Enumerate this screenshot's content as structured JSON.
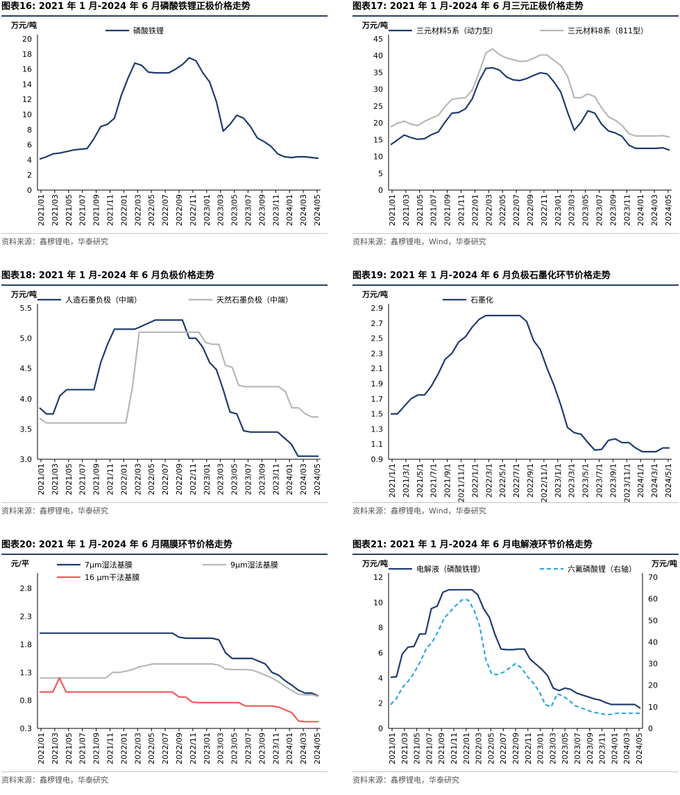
{
  "panels": [
    {
      "title": "图表16:  2021 年 1 月-2024 年 6 月磷酸铁锂正极价格走势",
      "source": "资料来源：鑫椤锂电，华泰研究",
      "chart_data": {
        "type": "line",
        "ylabel": "万元/吨",
        "ylim": [
          0,
          20
        ],
        "yticks": [
          "0",
          "2",
          "4",
          "6",
          "8",
          "10",
          "12",
          "14",
          "16",
          "18",
          "20"
        ],
        "xtick_labels": [
          "2021/01",
          "2021/03",
          "2021/05",
          "2021/07",
          "2021/09",
          "2021/11",
          "2022/01",
          "2022/03",
          "2022/05",
          "2022/07",
          "2022/09",
          "2022/11",
          "2023/01",
          "2023/03",
          "2023/05",
          "2023/07",
          "2023/09",
          "2023/11",
          "2024/01",
          "2024/03",
          "2024/05"
        ],
        "legend_position": "top-center",
        "series": [
          {
            "name": "磷酸铁锂",
            "color": "#1f3c6e",
            "dashed": false,
            "axis": "left",
            "values": [
              4.1,
              4.4,
              4.8,
              4.9,
              5.1,
              5.3,
              5.4,
              5.5,
              6.8,
              8.4,
              8.7,
              9.5,
              12.5,
              14.8,
              16.8,
              16.5,
              15.6,
              15.5,
              15.5,
              15.5,
              16.0,
              16.6,
              17.5,
              17.1,
              15.5,
              14.3,
              11.7,
              7.8,
              8.7,
              9.9,
              9.5,
              8.4,
              6.9,
              6.4,
              5.8,
              4.8,
              4.4,
              4.3,
              4.4,
              4.4,
              4.3,
              4.2
            ]
          }
        ]
      }
    },
    {
      "title": "图表17:  2021 年 1 月-2024 年 6 月三元正极价格走势",
      "source": "资料来源：鑫椤锂电，Wind，华泰研究",
      "chart_data": {
        "type": "line",
        "ylabel": "万元/吨",
        "ylim": [
          0,
          45
        ],
        "yticks": [
          "0",
          "5",
          "10",
          "15",
          "20",
          "25",
          "30",
          "35",
          "40",
          "45"
        ],
        "xtick_labels": [
          "2021/01",
          "2021/03",
          "2021/05",
          "2021/07",
          "2021/09",
          "2021/11",
          "2022/01",
          "2022/03",
          "2022/05",
          "2022/07",
          "2022/09",
          "2022/11",
          "2023/01",
          "2023/03",
          "2023/05",
          "2023/07",
          "2023/09",
          "2023/11",
          "2024/01",
          "2024/03",
          "2024/05"
        ],
        "legend_position": "top",
        "series": [
          {
            "name": "三元材料5系（动力型）",
            "color": "#1f3c6e",
            "dashed": false,
            "axis": "left",
            "values": [
              13.5,
              14.9,
              16.4,
              15.6,
              15.1,
              15.3,
              16.5,
              17.3,
              20.2,
              22.9,
              23.1,
              24.2,
              27.2,
              32.5,
              36.2,
              36.4,
              35.7,
              33.7,
              32.8,
              32.6,
              33.2,
              34.1,
              34.9,
              34.6,
              32.2,
              29.2,
              23.2,
              17.8,
              20.2,
              23.6,
              22.9,
              19.6,
              17.6,
              17.0,
              16.0,
              13.4,
              12.4,
              12.4,
              12.4,
              12.4,
              12.6,
              11.9
            ]
          },
          {
            "name": "三元材料8系（811型）",
            "color": "#b8b8b8",
            "dashed": false,
            "axis": "left",
            "values": [
              18.8,
              19.9,
              20.5,
              19.6,
              19.2,
              20.5,
              21.4,
              22.2,
              24.9,
              27.0,
              27.3,
              27.5,
              29.8,
              35.0,
              40.8,
              42.0,
              40.3,
              39.3,
              38.8,
              38.3,
              38.4,
              39.2,
              40.2,
              40.2,
              38.6,
              37.1,
              33.9,
              27.5,
              27.5,
              28.6,
              27.8,
              24.5,
              21.8,
              20.8,
              19.3,
              16.8,
              16.1,
              16.1,
              16.1,
              16.1,
              16.2,
              15.8
            ]
          }
        ]
      }
    },
    {
      "title": "图表18:  2021 年 1 月-2024 年 6 月负极价格走势",
      "source": "资料来源：鑫椤锂电，华泰研究",
      "chart_data": {
        "type": "line",
        "ylabel": "万元/吨",
        "ylim": [
          3.0,
          5.5
        ],
        "yticks": [
          "3.0",
          "3.5",
          "4.0",
          "4.5",
          "5.0",
          "5.5"
        ],
        "xtick_labels": [
          "2021/01",
          "2021/03",
          "2021/05",
          "2021/07",
          "2021/09",
          "2021/11",
          "2022/01",
          "2022/03",
          "2022/05",
          "2022/07",
          "2022/09",
          "2022/11",
          "2023/01",
          "2023/03",
          "2023/05",
          "2023/07",
          "2023/09",
          "2023/11",
          "2024/01",
          "2024/03",
          "2024/05"
        ],
        "legend_position": "top",
        "series": [
          {
            "name": "人造石墨负极（中端）",
            "color": "#1f3c6e",
            "dashed": false,
            "axis": "left",
            "values": [
              3.85,
              3.75,
              3.75,
              4.05,
              4.15,
              4.15,
              4.15,
              4.15,
              4.15,
              4.6,
              4.9,
              5.15,
              5.15,
              5.15,
              5.15,
              5.2,
              5.25,
              5.3,
              5.3,
              5.3,
              5.3,
              5.3,
              5.0,
              5.0,
              4.85,
              4.6,
              4.48,
              4.15,
              3.78,
              3.75,
              3.47,
              3.45,
              3.45,
              3.45,
              3.45,
              3.45,
              3.35,
              3.25,
              3.05,
              3.05,
              3.05,
              3.05
            ]
          },
          {
            "name": "天然石墨负极（中端）",
            "color": "#b8b8b8",
            "dashed": false,
            "axis": "left",
            "values": [
              3.68,
              3.6,
              3.6,
              3.6,
              3.6,
              3.6,
              3.6,
              3.6,
              3.6,
              3.6,
              3.6,
              3.6,
              3.6,
              3.6,
              4.2,
              5.1,
              5.1,
              5.1,
              5.1,
              5.1,
              5.1,
              5.1,
              5.1,
              5.1,
              5.1,
              4.93,
              4.9,
              4.9,
              4.55,
              4.52,
              4.22,
              4.2,
              4.2,
              4.2,
              4.2,
              4.2,
              4.2,
              4.12,
              3.85,
              3.85,
              3.75,
              3.7,
              3.7
            ]
          }
        ]
      }
    },
    {
      "title": "图表19:  2021 年 1 月-2024 年 6 月负极石墨化环节价格走势",
      "source": "资料来源：鑫椤锂电，Wind，华泰研究",
      "chart_data": {
        "type": "line",
        "ylabel": "万元/吨",
        "ylim": [
          0.9,
          2.9
        ],
        "yticks": [
          "0.9",
          "1.1",
          "1.3",
          "1.5",
          "1.7",
          "1.9",
          "2.1",
          "2.3",
          "2.5",
          "2.7",
          "2.9"
        ],
        "xtick_labels": [
          "2021/1/1",
          "2021/3/1",
          "2021/5/1",
          "2021/7/1",
          "2021/9/1",
          "2021/11/1",
          "2022/1/1",
          "2022/3/1",
          "2022/5/1",
          "2022/7/1",
          "2022/9/1",
          "2022/11/1",
          "2023/1/1",
          "2023/3/1",
          "2023/5/1",
          "2023/7/1",
          "2023/9/1",
          "2023/11/1",
          "2024/1/1",
          "2024/3/1",
          "2024/5/1"
        ],
        "legend_position": "top-left",
        "series": [
          {
            "name": "石墨化",
            "color": "#1f3c6e",
            "dashed": false,
            "axis": "left",
            "values": [
              1.5,
              1.5,
              1.6,
              1.7,
              1.75,
              1.75,
              1.87,
              2.03,
              2.22,
              2.3,
              2.45,
              2.52,
              2.65,
              2.75,
              2.8,
              2.8,
              2.8,
              2.8,
              2.8,
              2.8,
              2.72,
              2.47,
              2.35,
              2.1,
              1.88,
              1.62,
              1.32,
              1.25,
              1.23,
              1.12,
              1.02,
              1.03,
              1.15,
              1.17,
              1.12,
              1.12,
              1.05,
              1.0,
              1.0,
              1.0,
              1.05,
              1.05
            ]
          }
        ]
      }
    },
    {
      "title": "图表20:  2021 年 1 月-2024 年 6 月隔膜环节价格走势",
      "source": "资料来源：鑫椤锂电，华泰研究",
      "chart_data": {
        "type": "line",
        "ylabel": "元/平",
        "ylim": [
          0.3,
          3.0
        ],
        "yticks": [
          "0.3",
          "0.8",
          "1.3",
          "1.8",
          "2.3",
          "2.8"
        ],
        "xtick_labels": [
          "2021/01",
          "2021/03",
          "2021/05",
          "2021/07",
          "2021/09",
          "2021/11",
          "2022/01",
          "2022/03",
          "2022/05",
          "2022/07",
          "2022/09",
          "2022/11",
          "2023/01",
          "2023/03",
          "2023/05",
          "2023/07",
          "2023/09",
          "2023/11",
          "2024/01",
          "2024/03",
          "2024/05"
        ],
        "legend_position": "top",
        "series": [
          {
            "name": "7μm湿法基膜",
            "color": "#1f3c6e",
            "dashed": false,
            "axis": "left",
            "values": [
              2.0,
              2.0,
              2.0,
              2.0,
              2.0,
              2.0,
              2.0,
              2.0,
              2.0,
              2.0,
              2.0,
              2.0,
              2.0,
              2.0,
              2.0,
              2.0,
              2.0,
              2.0,
              2.0,
              2.0,
              2.0,
              1.93,
              1.91,
              1.91,
              1.91,
              1.91,
              1.91,
              1.88,
              1.65,
              1.55,
              1.55,
              1.55,
              1.55,
              1.5,
              1.45,
              1.3,
              1.25,
              1.15,
              1.07,
              0.98,
              0.93,
              0.93,
              0.88
            ]
          },
          {
            "name": "9μm湿法基膜",
            "color": "#b8b8b8",
            "dashed": false,
            "axis": "left",
            "values": [
              1.2,
              1.2,
              1.2,
              1.2,
              1.2,
              1.2,
              1.2,
              1.2,
              1.2,
              1.2,
              1.2,
              1.3,
              1.3,
              1.32,
              1.35,
              1.4,
              1.42,
              1.45,
              1.45,
              1.45,
              1.45,
              1.45,
              1.45,
              1.45,
              1.45,
              1.45,
              1.45,
              1.43,
              1.36,
              1.35,
              1.35,
              1.35,
              1.34,
              1.3,
              1.25,
              1.2,
              1.13,
              1.05,
              0.97,
              0.91,
              0.9,
              0.9,
              0.87
            ]
          },
          {
            "name": "16 μm干法基膜",
            "color": "#f05a5a",
            "dashed": false,
            "axis": "left",
            "values": [
              0.95,
              0.95,
              0.95,
              1.2,
              0.95,
              0.95,
              0.95,
              0.95,
              0.95,
              0.95,
              0.95,
              0.95,
              0.95,
              0.95,
              0.95,
              0.95,
              0.95,
              0.95,
              0.95,
              0.95,
              0.95,
              0.86,
              0.86,
              0.77,
              0.76,
              0.76,
              0.76,
              0.76,
              0.76,
              0.76,
              0.76,
              0.7,
              0.7,
              0.7,
              0.7,
              0.7,
              0.68,
              0.63,
              0.58,
              0.43,
              0.42,
              0.42,
              0.42
            ]
          }
        ]
      }
    },
    {
      "title": "图表21:  2021 年 1 月-2024 年 6 月电解液环节价格走势",
      "source": "资料来源：鑫椤锂电，华泰研究",
      "chart_data": {
        "type": "line",
        "ylabel": "万元/吨",
        "ylabel_right": "万元/吨",
        "ylim": [
          0,
          12
        ],
        "ylim_right": [
          0,
          70
        ],
        "yticks": [
          "0",
          "2",
          "4",
          "6",
          "8",
          "10",
          "12"
        ],
        "yticks_right": [
          "0",
          "10",
          "20",
          "30",
          "40",
          "50",
          "60",
          "70"
        ],
        "xtick_labels": [
          "2021/01",
          "2021/03",
          "2021/05",
          "2021/07",
          "2021/09",
          "2021/11",
          "2022/01",
          "2022/03",
          "2022/05",
          "2022/07",
          "2022/09",
          "2022/11",
          "2023/01",
          "2023/03",
          "2023/05",
          "2023/07",
          "2023/09",
          "2023/11",
          "2024/01",
          "2024/03",
          "2024/05"
        ],
        "legend_position": "top",
        "series": [
          {
            "name": "电解液（磷酸铁锂）",
            "color": "#1f3c6e",
            "dashed": false,
            "axis": "left",
            "values": [
              4.05,
              4.1,
              5.9,
              6.45,
              6.5,
              7.5,
              7.5,
              9.5,
              9.7,
              10.8,
              11.0,
              11.0,
              11.0,
              11.0,
              11.0,
              10.6,
              9.5,
              8.8,
              7.4,
              6.3,
              6.25,
              6.25,
              6.3,
              6.3,
              5.5,
              5.1,
              4.7,
              4.2,
              3.2,
              3.0,
              3.2,
              3.1,
              2.8,
              2.65,
              2.5,
              2.35,
              2.25,
              2.05,
              1.9,
              1.9,
              1.9,
              1.9,
              1.9,
              1.6
            ]
          },
          {
            "name": "六氟磷酸锂（右轴）",
            "color": "#2fa6e0",
            "dashed": true,
            "axis": "right",
            "values": [
              11,
              14,
              19,
              22,
              26,
              31,
              37,
              40,
              45,
              51,
              54,
              57,
              59.5,
              59.5,
              55,
              47,
              32,
              25,
              25,
              26,
              28,
              30,
              28,
              24,
              21,
              17,
              11,
              10,
              16,
              15,
              13,
              10.5,
              9.5,
              8.5,
              7.5,
              7,
              6.5,
              6.5,
              7,
              7,
              7,
              7,
              7
            ]
          }
        ]
      }
    }
  ]
}
